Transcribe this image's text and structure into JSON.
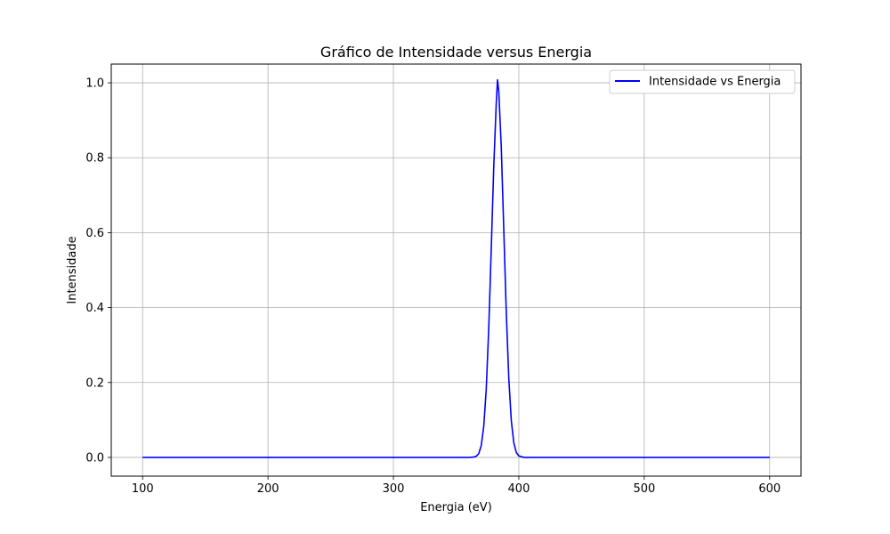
{
  "chart_data": {
    "type": "line",
    "title": "Gráfico de Intensidade versus Energia",
    "xlabel": "Energia (eV)",
    "ylabel": "Intensidade",
    "xlim": [
      75,
      625
    ],
    "ylim": [
      -0.05,
      1.05
    ],
    "xticks": [
      100,
      200,
      300,
      400,
      500,
      600
    ],
    "yticks": [
      0.0,
      0.2,
      0.4,
      0.6,
      0.8,
      1.0
    ],
    "xtick_labels": [
      "100",
      "200",
      "300",
      "400",
      "500",
      "600"
    ],
    "ytick_labels": [
      "0.0",
      "0.2",
      "0.4",
      "0.6",
      "0.8",
      "1.0"
    ],
    "grid": true,
    "legend_position": "top-right",
    "series": [
      {
        "name": "Intensidade vs Energia",
        "color": "#0000ff",
        "x": [
          100,
          150,
          200,
          250,
          300,
          350,
          360,
          364,
          366,
          368,
          370,
          372,
          374,
          376,
          378,
          380,
          382,
          383,
          384,
          386,
          388,
          390,
          392,
          394,
          396,
          398,
          400,
          404,
          410,
          450,
          500,
          550,
          600
        ],
        "y": [
          0,
          0,
          0,
          0,
          0,
          0,
          0.0,
          0.001,
          0.003,
          0.01,
          0.031,
          0.082,
          0.181,
          0.343,
          0.555,
          0.775,
          0.945,
          1.008,
          0.978,
          0.829,
          0.608,
          0.387,
          0.211,
          0.098,
          0.039,
          0.013,
          0.004,
          0.0,
          0,
          0,
          0,
          0,
          0
        ]
      }
    ]
  }
}
